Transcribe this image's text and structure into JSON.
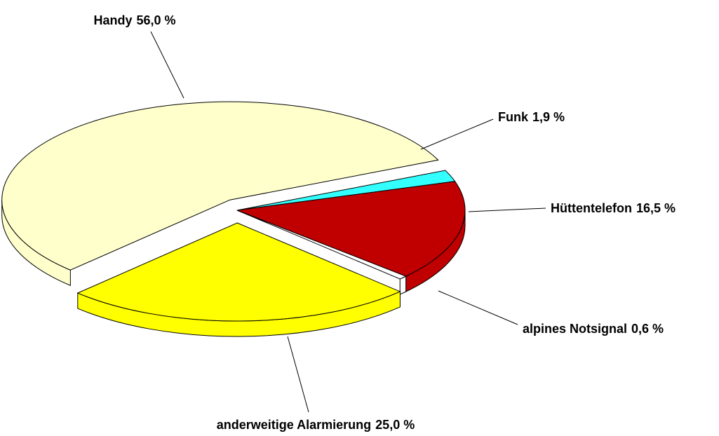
{
  "chart_data": {
    "type": "pie",
    "categories": [
      "Handy",
      "Funk",
      "Hüttentelefon",
      "alpines Notsignal",
      "anderweitige Alarmierung"
    ],
    "values": [
      56.0,
      1.9,
      16.5,
      0.6,
      25.0
    ],
    "value_labels": [
      "56,0 %",
      "1,9 %",
      "16,5 %",
      "0,6 %",
      "25,0 %"
    ],
    "colors": [
      "#ffffcc",
      "#33ffff",
      "#c00000",
      "#ffffff",
      "#ffff00"
    ]
  }
}
